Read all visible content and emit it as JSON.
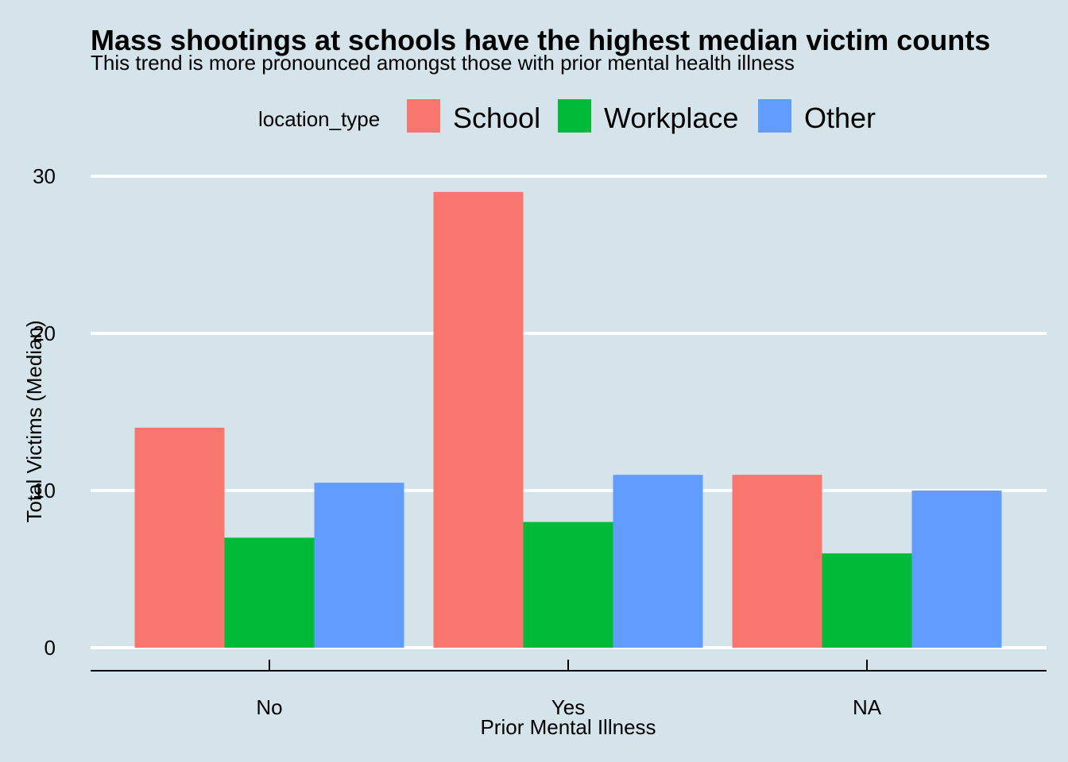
{
  "chart_data": {
    "type": "bar",
    "title": "Mass shootings at schools have the highest median victim counts",
    "subtitle": "This trend is more pronounced amongst those with prior mental health illness",
    "xlabel": "Prior Mental Illness",
    "ylabel": "Total Victims (Median)",
    "categories": [
      "No",
      "Yes",
      "NA"
    ],
    "series": [
      {
        "name": "School",
        "color": "#f8766d",
        "values": [
          14,
          29,
          11
        ]
      },
      {
        "name": "Workplace",
        "color": "#00ba38",
        "values": [
          7,
          8,
          6
        ]
      },
      {
        "name": "Other",
        "color": "#619cff",
        "values": [
          10.5,
          11,
          10
        ]
      }
    ],
    "legend": {
      "title": "location_type",
      "position": "top"
    },
    "ylim": [
      0,
      30
    ],
    "yticks": [
      0,
      10,
      20,
      30
    ],
    "grid": {
      "horizontal": true,
      "vertical": false,
      "color": "#ffffff"
    }
  }
}
